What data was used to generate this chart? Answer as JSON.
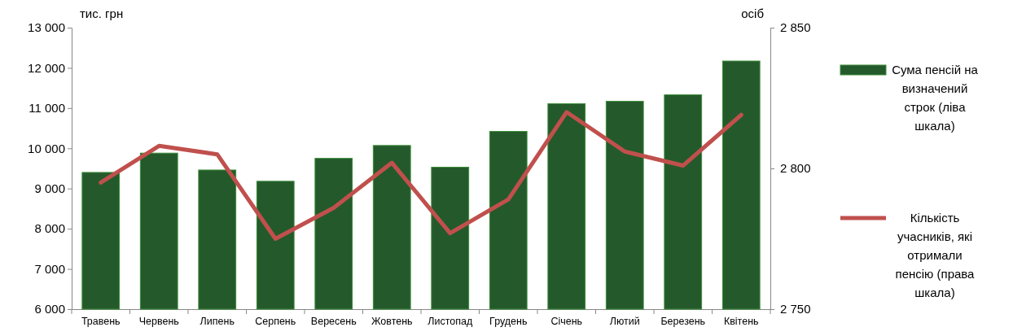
{
  "chart_data": {
    "type": "bar",
    "ylabel": "тис. грн",
    "y2label": "осіб",
    "categories": [
      "Травень",
      "Червень",
      "Липень",
      "Серпень",
      "Вересень",
      "Жовтень",
      "Листопад",
      "Грудень",
      "Січень",
      "Лютий",
      "Березень",
      "Квітень"
    ],
    "series": [
      {
        "name": "Сума пенсій на визначений строк (ліва шкала)",
        "color": "#245a2b",
        "values": [
          9400,
          9880,
          9460,
          9180,
          9750,
          10070,
          9530,
          10420,
          11110,
          11170,
          11330,
          12170
        ]
      },
      {
        "name": "Кількість учасників, які отримали пенсію (права шкала)",
        "type": "line",
        "axis": "y2",
        "color": "#c0504d",
        "values": [
          2795,
          2808,
          2805,
          2775,
          2786,
          2802,
          2777,
          2789,
          2820,
          2806,
          2801,
          2819
        ]
      }
    ],
    "ylim": [
      6000,
      13000
    ],
    "yticks": [
      {
        "value": 6000,
        "label": "6 000"
      },
      {
        "value": 7000,
        "label": "7 000"
      },
      {
        "value": 8000,
        "label": "8 000"
      },
      {
        "value": 9000,
        "label": "9 000"
      },
      {
        "value": 10000,
        "label": "10 000"
      },
      {
        "value": 11000,
        "label": "11 000"
      },
      {
        "value": 12000,
        "label": "12 000"
      },
      {
        "value": 13000,
        "label": "13 000"
      }
    ],
    "y2lim": [
      2750,
      2850
    ],
    "y2ticks": [
      {
        "value": 2750,
        "label": "2 750"
      },
      {
        "value": 2800,
        "label": "2 800"
      },
      {
        "value": 2850,
        "label": "2 850"
      }
    ],
    "grid": false,
    "legend": "right",
    "marker": "none",
    "line_style": "solid"
  }
}
